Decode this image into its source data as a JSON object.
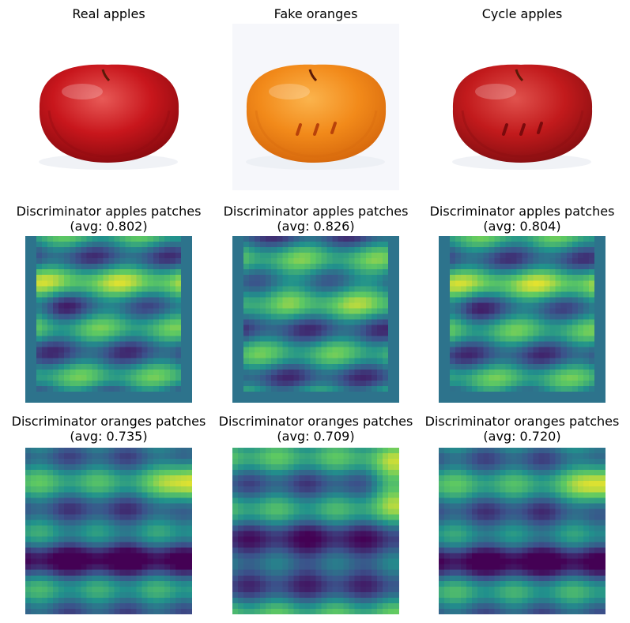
{
  "figure": {
    "rows": [
      {
        "panels": [
          {
            "title": "Real apples",
            "image": "real-apple-photo",
            "colors": {
              "fruit": "#c8161c",
              "highlight": "#e85a57",
              "shadow": "#8e0b10"
            }
          },
          {
            "title": "Fake oranges",
            "image": "fake-orange-photo",
            "colors": {
              "fruit": "#f28a1a",
              "highlight": "#fbb44d",
              "shadow": "#d86a0d"
            }
          },
          {
            "title": "Cycle apples",
            "image": "cycle-apple-photo",
            "colors": {
              "fruit": "#c21a1c",
              "highlight": "#e0524d",
              "shadow": "#8a0f12"
            }
          }
        ]
      },
      {
        "panels": [
          {
            "title": "Discriminator apples patches",
            "subtitle": "(avg: 0.802)",
            "image": "apple-discriminator-heatmap"
          },
          {
            "title": "Discriminator apples patches",
            "subtitle": "(avg: 0.826)",
            "image": "apple-discriminator-heatmap"
          },
          {
            "title": "Discriminator apples patches",
            "subtitle": "(avg: 0.804)",
            "image": "apple-discriminator-heatmap"
          }
        ]
      },
      {
        "panels": [
          {
            "title": "Discriminator oranges patches",
            "subtitle": "(avg: 0.735)",
            "image": "orange-discriminator-heatmap"
          },
          {
            "title": "Discriminator oranges patches",
            "subtitle": "(avg: 0.709)",
            "image": "orange-discriminator-heatmap"
          },
          {
            "title": "Discriminator oranges patches",
            "subtitle": "(avg: 0.720)",
            "image": "orange-discriminator-heatmap"
          }
        ]
      }
    ],
    "colormap": [
      "#440154",
      "#3b528b",
      "#21918c",
      "#5ec962",
      "#fde725"
    ]
  }
}
